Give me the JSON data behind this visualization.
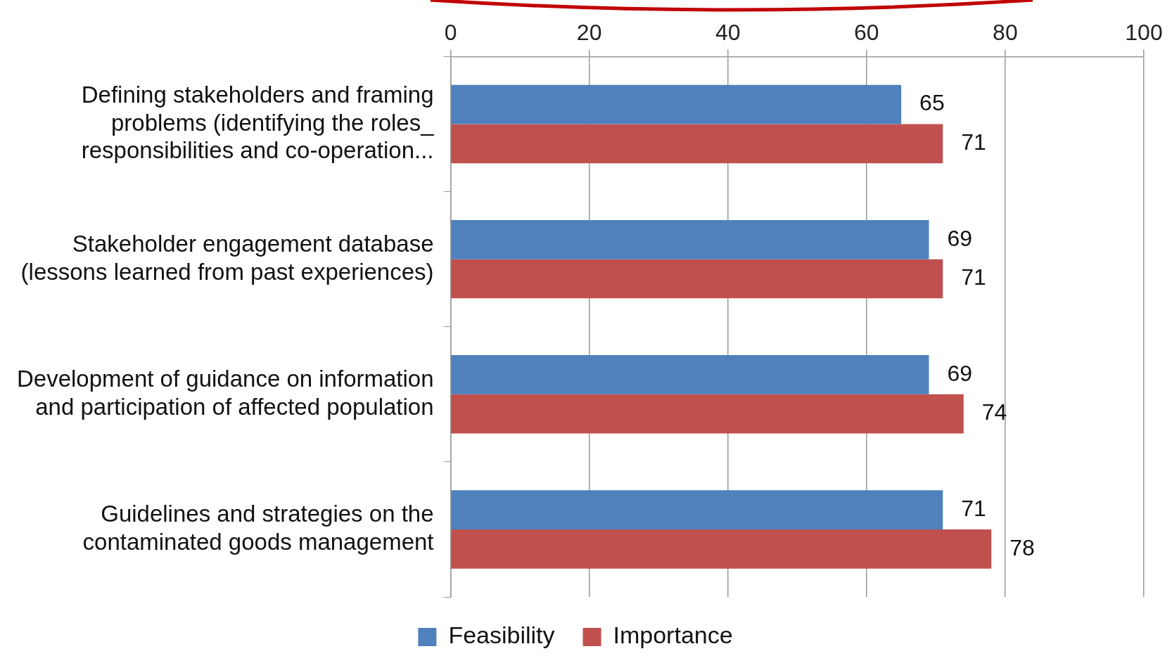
{
  "chart_data": {
    "type": "bar",
    "orientation": "horizontal",
    "categories": [
      "Defining stakeholders and framing problems (identifying the roles_ responsibilities and co-operation...",
      "Stakeholder engagement database (lessons learned from past experiences)",
      "Development of guidance on information and participation of affected population",
      "Guidelines and strategies on the contaminated goods management"
    ],
    "series": [
      {
        "name": "Feasibility",
        "color": "#4f81bd",
        "values": [
          65,
          69,
          69,
          71
        ]
      },
      {
        "name": "Importance",
        "color": "#c0504d",
        "values": [
          71,
          71,
          74,
          78
        ]
      }
    ],
    "xlim": [
      0,
      100
    ],
    "xticks": [
      0,
      20,
      40,
      60,
      80,
      100
    ],
    "grid": "x",
    "legend": "bottom",
    "data_labels": true
  }
}
